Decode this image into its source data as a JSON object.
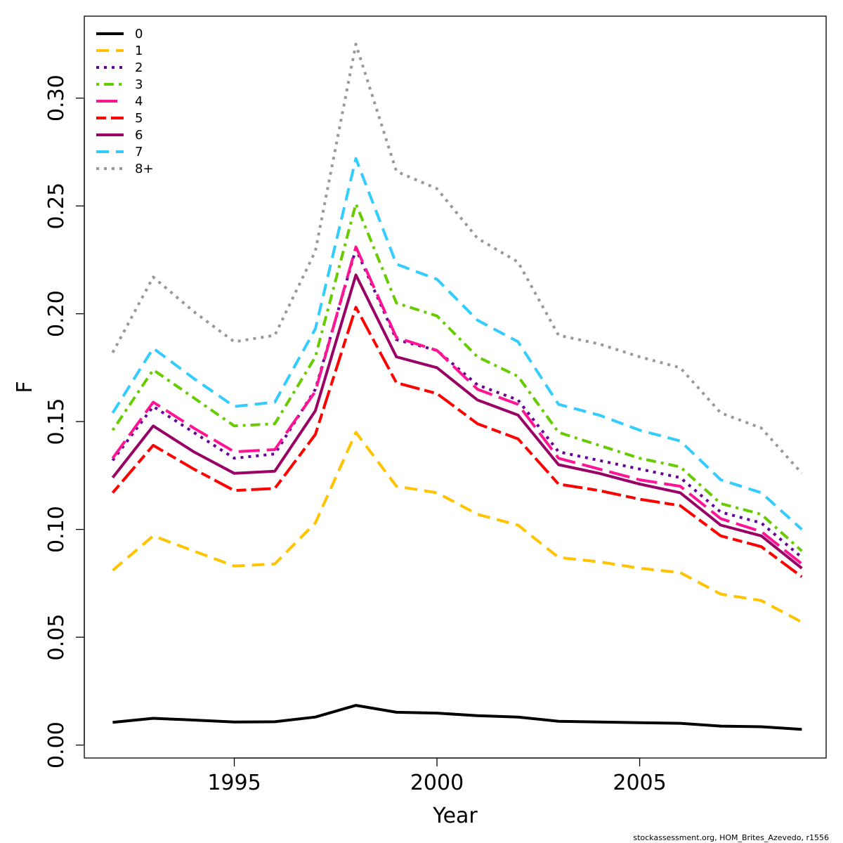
{
  "chart_data": {
    "type": "line",
    "xlabel": "Year",
    "ylabel": "F",
    "xlim": [
      1991.3,
      2009.6
    ],
    "ylim": [
      -0.006,
      0.338
    ],
    "x_ticks": [
      1995,
      2000,
      2005
    ],
    "y_ticks": [
      0.0,
      0.05,
      0.1,
      0.15,
      0.2,
      0.25,
      0.3
    ],
    "y_tick_labels": [
      "0.00",
      "0.05",
      "0.10",
      "0.15",
      "0.20",
      "0.25",
      "0.30"
    ],
    "legend_position": "top-left",
    "grid": false,
    "x": [
      1992,
      1993,
      1994,
      1995,
      1996,
      1997,
      1998,
      1999,
      2000,
      2001,
      2002,
      2003,
      2004,
      2005,
      2006,
      2007,
      2008,
      2009
    ],
    "series": [
      {
        "name": "0",
        "color": "#000000",
        "dash": "solid",
        "values": [
          0.0105,
          0.0124,
          0.0116,
          0.0107,
          0.0108,
          0.013,
          0.0184,
          0.0152,
          0.0148,
          0.0136,
          0.013,
          0.011,
          0.0107,
          0.0104,
          0.0101,
          0.0088,
          0.0085,
          0.0073
        ]
      },
      {
        "name": "1",
        "color": "#FFC300",
        "dash": "dashed",
        "values": [
          0.081,
          0.097,
          0.09,
          0.083,
          0.084,
          0.103,
          0.145,
          0.12,
          0.117,
          0.107,
          0.102,
          0.087,
          0.085,
          0.082,
          0.08,
          0.07,
          0.067,
          0.057
        ]
      },
      {
        "name": "2",
        "color": "#660099",
        "dash": "dotted",
        "values": [
          0.132,
          0.157,
          0.145,
          0.133,
          0.135,
          0.165,
          0.23,
          0.188,
          0.183,
          0.167,
          0.16,
          0.136,
          0.132,
          0.128,
          0.124,
          0.108,
          0.103,
          0.087
        ]
      },
      {
        "name": "3",
        "color": "#66CC00",
        "dash": "dotdash",
        "values": [
          0.146,
          0.174,
          0.161,
          0.148,
          0.149,
          0.18,
          0.251,
          0.205,
          0.199,
          0.18,
          0.171,
          0.145,
          0.139,
          0.133,
          0.129,
          0.112,
          0.107,
          0.09
        ]
      },
      {
        "name": "4",
        "color": "#FF1493",
        "dash": "longdash",
        "values": [
          0.133,
          0.159,
          0.147,
          0.136,
          0.137,
          0.164,
          0.231,
          0.189,
          0.183,
          0.165,
          0.158,
          0.133,
          0.128,
          0.123,
          0.12,
          0.105,
          0.099,
          0.084
        ]
      },
      {
        "name": "5",
        "color": "#FF0000",
        "dash": "twodash",
        "values": [
          0.117,
          0.139,
          0.128,
          0.118,
          0.119,
          0.144,
          0.203,
          0.168,
          0.163,
          0.149,
          0.142,
          0.121,
          0.118,
          0.114,
          0.111,
          0.097,
          0.092,
          0.078
        ]
      },
      {
        "name": "6",
        "color": "#990066",
        "dash": "solid",
        "values": [
          0.124,
          0.148,
          0.136,
          0.126,
          0.127,
          0.155,
          0.218,
          0.18,
          0.175,
          0.16,
          0.153,
          0.13,
          0.126,
          0.121,
          0.117,
          0.102,
          0.097,
          0.082
        ]
      },
      {
        "name": "7",
        "color": "#33CCFF",
        "dash": "dashed",
        "values": [
          0.154,
          0.184,
          0.17,
          0.157,
          0.159,
          0.193,
          0.272,
          0.223,
          0.216,
          0.197,
          0.187,
          0.158,
          0.153,
          0.146,
          0.141,
          0.123,
          0.117,
          0.1
        ]
      },
      {
        "name": "8+",
        "color": "#999999",
        "dash": "dotted",
        "values": [
          0.182,
          0.217,
          0.201,
          0.187,
          0.19,
          0.229,
          0.325,
          0.266,
          0.258,
          0.235,
          0.224,
          0.19,
          0.186,
          0.18,
          0.175,
          0.154,
          0.147,
          0.126
        ]
      }
    ]
  },
  "footer_text": "stockassessment.org, HOM_Brites_Azevedo, r1556"
}
